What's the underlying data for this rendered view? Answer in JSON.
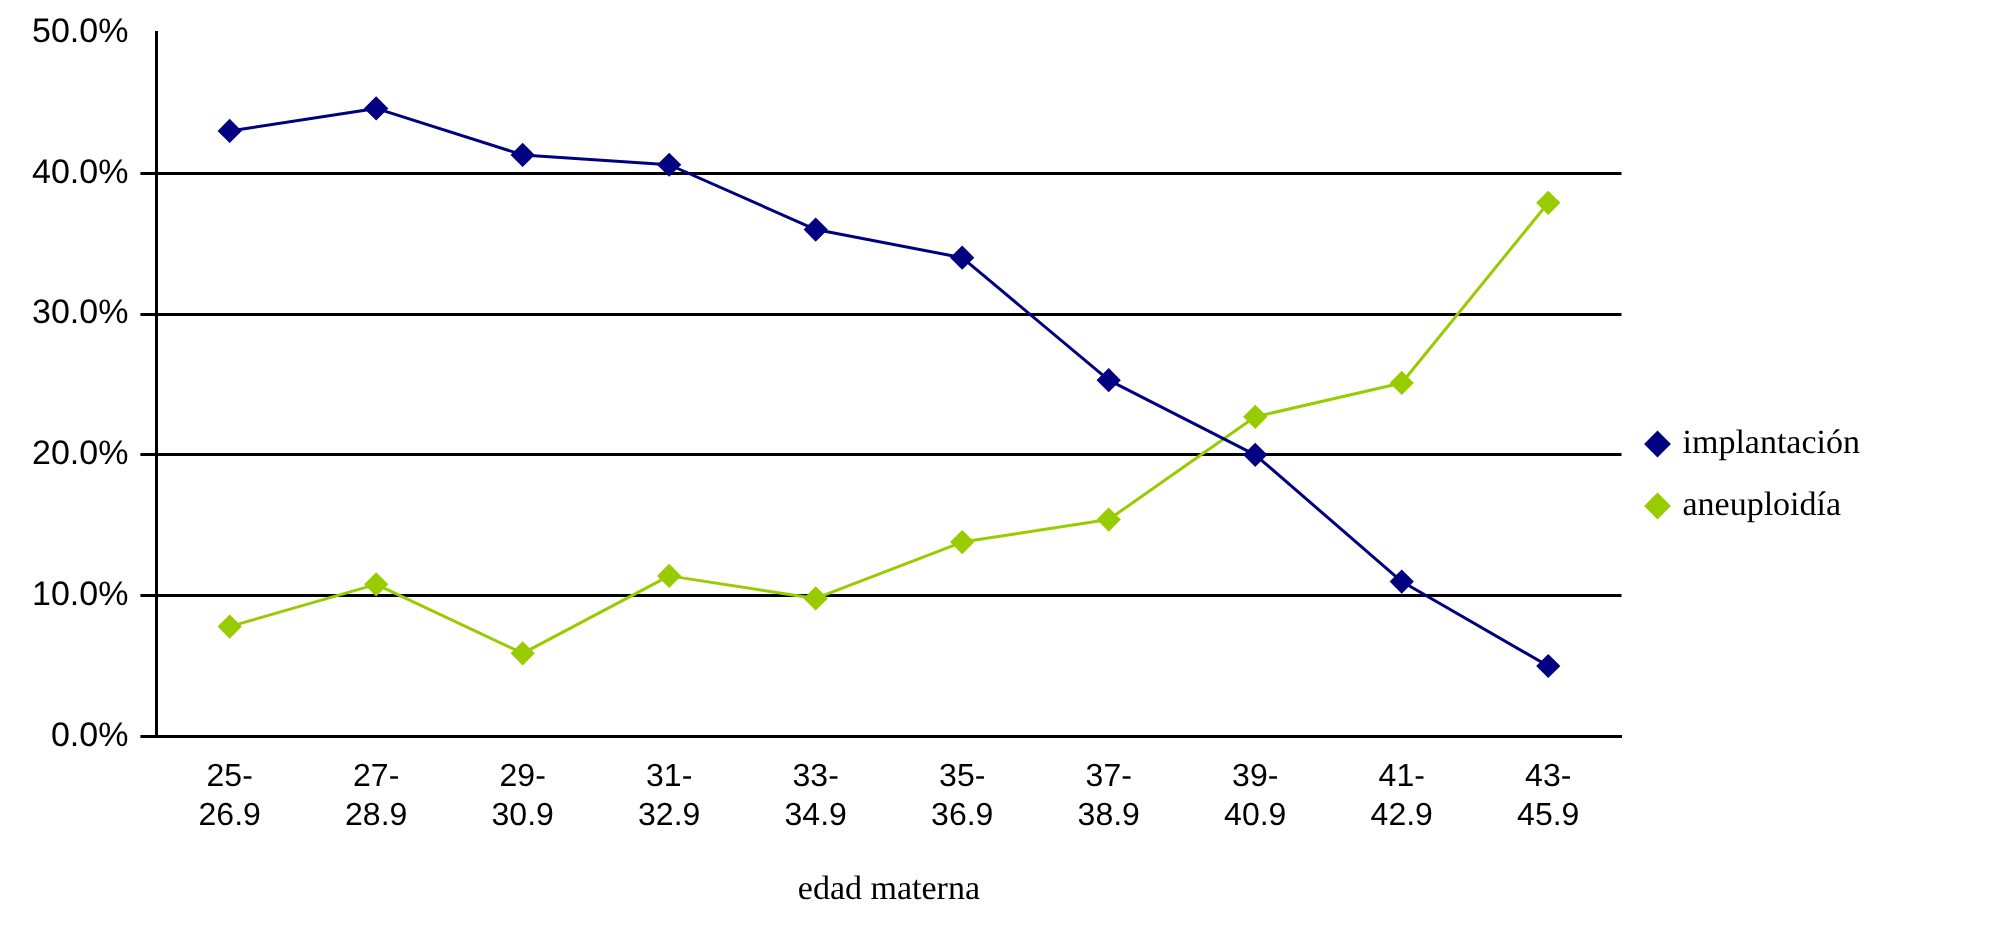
{
  "chart_data": {
    "type": "line",
    "xlabel": "edad materna",
    "categories": [
      "25-26.9",
      "27-28.9",
      "29-30.9",
      "31-32.9",
      "33-34.9",
      "35-36.9",
      "37-38.9",
      "39-40.9",
      "41-42.9",
      "43-45.9"
    ],
    "series": [
      {
        "name": "implantación",
        "color": "#000080",
        "values": [
          43.0,
          44.6,
          41.3,
          40.6,
          36.0,
          34.0,
          25.3,
          20.0,
          11.0,
          5.0
        ]
      },
      {
        "name": "aneuploidía",
        "color": "#99cc00",
        "values": [
          7.8,
          10.8,
          5.9,
          11.4,
          9.8,
          13.8,
          15.4,
          22.7,
          25.1,
          37.9
        ]
      }
    ],
    "ylim": [
      0,
      50
    ],
    "yticks": [
      {
        "value": 0,
        "label": "0.0%"
      },
      {
        "value": 10,
        "label": "10.0%"
      },
      {
        "value": 20,
        "label": "20.0%"
      },
      {
        "value": 30,
        "label": "30.0%"
      },
      {
        "value": 40,
        "label": "40.0%"
      },
      {
        "value": 50,
        "label": "50.0%"
      }
    ],
    "grid": "y",
    "legend": "right",
    "marker": "diamond",
    "line_style": "solid"
  }
}
